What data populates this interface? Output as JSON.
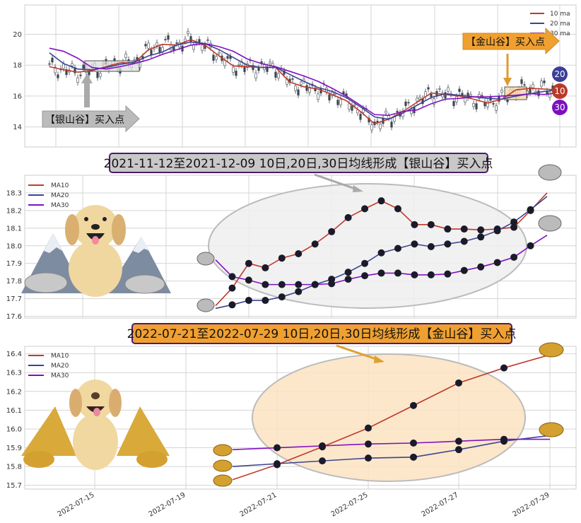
{
  "colors": {
    "ma10": "#c0392b",
    "ma20": "#3a4590",
    "ma30": "#8010c0",
    "silver_box": "#c8c8c8",
    "gold_box": "#f0a030",
    "title_border": "#4b1b6b",
    "candle": "#3c4650"
  },
  "chart_data": [
    {
      "type": "line",
      "subtype": "candlestick-with-moving-averages",
      "ylim": [
        12.7,
        21.9
      ],
      "yticks": [
        "14",
        "16",
        "18",
        "20"
      ],
      "grid": true,
      "legend": {
        "placement": "top-right",
        "entries": [
          "10 ma",
          "20 ma",
          "30 ma"
        ]
      },
      "x": [
        0,
        1,
        2,
        3,
        4,
        5,
        6,
        7,
        8,
        9,
        10,
        11,
        12,
        13,
        14,
        15,
        16,
        17,
        18,
        19,
        20,
        21,
        22,
        23,
        24,
        25,
        26,
        27,
        28,
        29,
        30,
        31,
        32,
        33,
        34,
        35,
        36
      ],
      "series": [
        {
          "name": "10 ma",
          "values": [
            17.9,
            17.7,
            17.55,
            17.65,
            17.9,
            18.15,
            18.15,
            19.0,
            19.35,
            19.3,
            19.65,
            19.3,
            18.6,
            17.95,
            17.9,
            17.85,
            17.85,
            16.9,
            16.6,
            16.45,
            16.1,
            15.7,
            15.0,
            14.2,
            14.5,
            15.0,
            15.6,
            16.2,
            16.1,
            16.0,
            15.8,
            15.55,
            15.8,
            16.4,
            16.5,
            16.45,
            16.4
          ]
        },
        {
          "name": "20 ma",
          "values": [
            18.8,
            18.1,
            17.75,
            17.7,
            17.85,
            18.05,
            18.2,
            18.6,
            18.85,
            19.3,
            19.5,
            19.4,
            19.0,
            18.5,
            18.0,
            17.85,
            17.85,
            17.4,
            16.95,
            16.55,
            16.3,
            15.9,
            15.3,
            14.65,
            14.5,
            14.9,
            15.4,
            15.9,
            16.15,
            16.05,
            15.95,
            15.85,
            15.8,
            16.0,
            16.15,
            16.3,
            16.4
          ]
        },
        {
          "name": "30 ma",
          "values": [
            19.1,
            18.9,
            18.45,
            17.85,
            17.75,
            17.9,
            18.1,
            18.35,
            18.7,
            19.0,
            19.3,
            19.4,
            19.2,
            18.9,
            18.4,
            18.1,
            17.9,
            17.6,
            17.3,
            16.95,
            16.5,
            16.0,
            15.4,
            14.8,
            14.75,
            15.0,
            15.1,
            15.5,
            15.8,
            15.85,
            15.95,
            15.95,
            16.0,
            16.05,
            16.15,
            16.1,
            16.2
          ]
        }
      ],
      "annotations": [
        {
          "label": "【银山谷】买入点",
          "style": "silver"
        },
        {
          "label": "【金山谷】买入点",
          "style": "gold"
        }
      ],
      "badges": [
        "20",
        "10",
        "30"
      ]
    },
    {
      "type": "line",
      "title": "2021-11-12至2021-12-09 10日,20日,30日均线形成【银山谷】买入点",
      "ylim": [
        17.59,
        18.4
      ],
      "yticks": [
        "17.6",
        "17.7",
        "17.8",
        "17.9",
        "18.0",
        "18.1",
        "18.2",
        "18.3"
      ],
      "grid": true,
      "legend": {
        "placement": "top-left",
        "entries": [
          "MA10",
          "MA20",
          "MA30"
        ]
      },
      "x": [
        0,
        1,
        2,
        3,
        4,
        5,
        6,
        7,
        8,
        9,
        10,
        11,
        12,
        13,
        14,
        15,
        16,
        17,
        18,
        19,
        20
      ],
      "series": [
        {
          "name": "MA10",
          "values": [
            17.66,
            17.76,
            17.9,
            17.875,
            17.93,
            17.955,
            18.01,
            18.08,
            18.16,
            18.21,
            18.255,
            18.21,
            18.12,
            18.12,
            18.095,
            18.095,
            18.09,
            18.095,
            18.105,
            18.2,
            18.3
          ]
        },
        {
          "name": "MA20",
          "values": [
            17.645,
            17.665,
            17.69,
            17.69,
            17.71,
            17.74,
            17.78,
            17.81,
            17.85,
            17.9,
            17.96,
            17.985,
            18.01,
            17.995,
            18.01,
            18.025,
            18.05,
            18.085,
            18.135,
            18.205,
            18.28
          ]
        },
        {
          "name": "MA30",
          "values": [
            17.92,
            17.825,
            17.805,
            17.78,
            17.78,
            17.78,
            17.78,
            17.785,
            17.81,
            17.83,
            17.845,
            17.845,
            17.835,
            17.835,
            17.84,
            17.86,
            17.88,
            17.905,
            17.935,
            18.0,
            18.06
          ]
        }
      ]
    },
    {
      "type": "line",
      "title": "2022-07-21至2022-07-29 10日,20日,30日均线形成【金山谷】买入点",
      "ylim": [
        15.68,
        16.44
      ],
      "yticks": [
        "15.7",
        "15.8",
        "15.9",
        "16.0",
        "16.1",
        "16.2",
        "16.3",
        "16.4"
      ],
      "xticks": [
        "2022-07-15",
        "2022-07-19",
        "2022-07-21",
        "2022-07-25",
        "2022-07-27",
        "2022-07-29"
      ],
      "grid": true,
      "legend": {
        "placement": "top-left",
        "entries": [
          "MA10",
          "MA20",
          "MA30"
        ]
      },
      "x": [
        "2022-07-20",
        "2022-07-21",
        "2022-07-22",
        "2022-07-25",
        "2022-07-26",
        "2022-07-27",
        "2022-07-28",
        "2022-07-29"
      ],
      "series": [
        {
          "name": "MA10",
          "values": [
            15.73,
            15.81,
            15.905,
            16.005,
            16.125,
            16.245,
            16.325,
            16.395
          ]
        },
        {
          "name": "MA20",
          "values": [
            15.8,
            15.815,
            15.83,
            15.845,
            15.85,
            15.89,
            15.935,
            15.965
          ]
        },
        {
          "name": "MA30",
          "values": [
            15.89,
            15.9,
            15.91,
            15.92,
            15.925,
            15.935,
            15.945,
            15.945
          ]
        }
      ]
    }
  ]
}
